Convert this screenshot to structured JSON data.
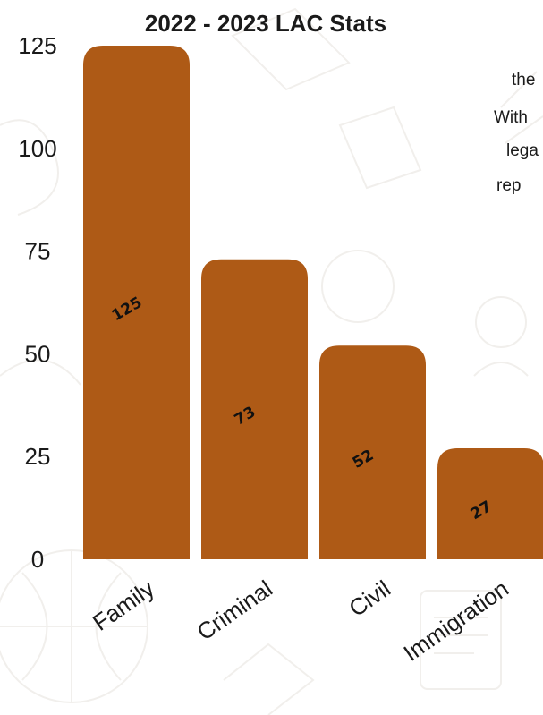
{
  "chart_data": {
    "type": "bar",
    "title": "2022 - 2023 LAC Stats",
    "categories": [
      "Family",
      "Criminal",
      "Civil",
      "Immigration"
    ],
    "values": [
      125,
      73,
      52,
      27
    ],
    "data_labels": [
      "125",
      "73",
      "52",
      "27"
    ],
    "yticks": [
      "0",
      "25",
      "50",
      "75",
      "100",
      "125"
    ],
    "ylim": [
      0,
      125
    ],
    "grid": false,
    "legend": "none",
    "bar_color": "#ae5a16"
  },
  "side_text": {
    "line1": "the",
    "line2": "With",
    "line3": "lega",
    "line4": "rep"
  }
}
